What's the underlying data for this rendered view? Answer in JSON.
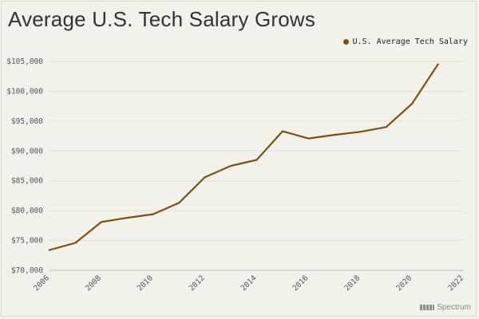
{
  "title": "Average U.S. Tech Salary Grows",
  "brand": "Spectrum",
  "colors": {
    "line": "#7a5215",
    "background": "#f2f1ea",
    "grid": "#e1e0d8"
  },
  "chart_data": {
    "type": "line",
    "title": "Average U.S. Tech Salary Grows",
    "xlabel": "",
    "ylabel": "",
    "xlim": [
      2006,
      2022
    ],
    "ylim": [
      70000,
      105000
    ],
    "x_ticks": [
      2006,
      2008,
      2010,
      2012,
      2014,
      2016,
      2018,
      2020,
      2022
    ],
    "y_ticks": [
      70000,
      75000,
      80000,
      85000,
      90000,
      95000,
      100000,
      105000
    ],
    "y_tick_labels": [
      "$70,000",
      "$75,000",
      "$80,000",
      "$85,000",
      "$90,000",
      "$95,000",
      "$100,000",
      "$105,000"
    ],
    "grid": "horizontal",
    "legend": "top-right",
    "series": [
      {
        "name": "U.S. Average Tech Salary",
        "color": "#7a5215",
        "x": [
          2006,
          2007,
          2008,
          2009,
          2010,
          2011,
          2012,
          2013,
          2014,
          2015,
          2016,
          2017,
          2018,
          2019,
          2020,
          2021
        ],
        "y": [
          73400,
          74600,
          78100,
          78800,
          79400,
          81300,
          85600,
          87500,
          88500,
          93300,
          92100,
          92700,
          93200,
          94000,
          97900,
          104500
        ]
      }
    ]
  }
}
